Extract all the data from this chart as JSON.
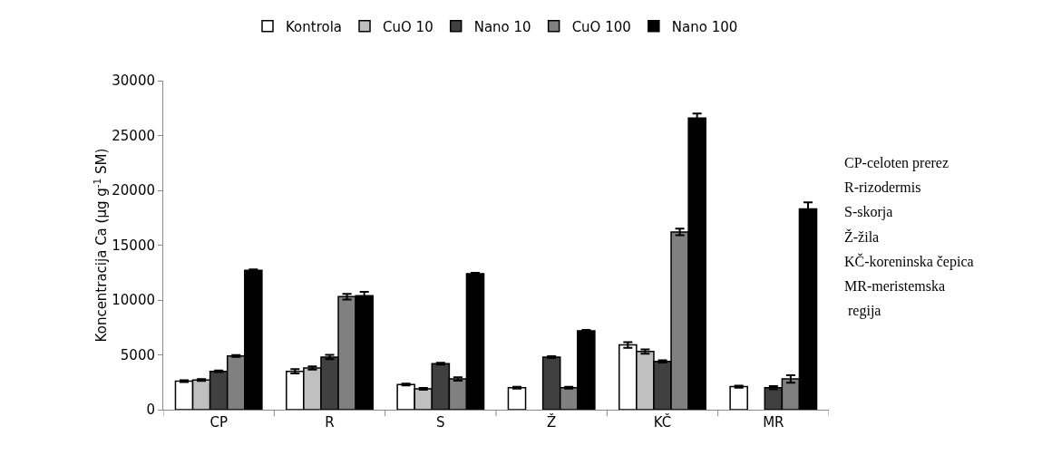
{
  "chart_data": {
    "type": "bar",
    "ylabel": "Koncentracija Ca (µg g$^{-1}$ SM)",
    "categories": [
      "CP",
      "R",
      "S",
      "Ž",
      "KČ",
      "MR"
    ],
    "series": [
      {
        "name": "Kontrola",
        "color": "#ffffff",
        "values": [
          2600,
          3500,
          2300,
          2000,
          5900,
          2100
        ],
        "errors": [
          80,
          200,
          80,
          80,
          250,
          100
        ]
      },
      {
        "name": "CuO 10",
        "color": "#c0c0c0",
        "values": [
          2700,
          3800,
          1900,
          null,
          5300,
          null
        ],
        "errors": [
          80,
          150,
          80,
          null,
          200,
          null
        ]
      },
      {
        "name": "Nano 10",
        "color": "#404040",
        "values": [
          3500,
          4800,
          4200,
          4800,
          4400,
          2000
        ],
        "errors": [
          80,
          200,
          80,
          80,
          100,
          150
        ]
      },
      {
        "name": "CuO 100",
        "color": "#808080",
        "values": [
          4900,
          10300,
          2800,
          2000,
          16200,
          2800
        ],
        "errors": [
          80,
          250,
          150,
          80,
          300,
          350
        ]
      },
      {
        "name": "Nano 100",
        "color": "#000000",
        "values": [
          12700,
          10400,
          12400,
          7200,
          26600,
          18300
        ],
        "errors": [
          80,
          350,
          80,
          80,
          400,
          600
        ]
      }
    ],
    "ylim": [
      0,
      30000
    ],
    "yticks": [
      0,
      5000,
      10000,
      15000,
      20000,
      25000,
      30000
    ],
    "grid": false,
    "legend": "top",
    "annotations": [
      "CP-celoten prerez",
      "R-rizodermis",
      "S-skorja",
      "Ž-žila",
      "KČ-koreninska čepica",
      "MR-meristemska",
      " regija"
    ]
  }
}
